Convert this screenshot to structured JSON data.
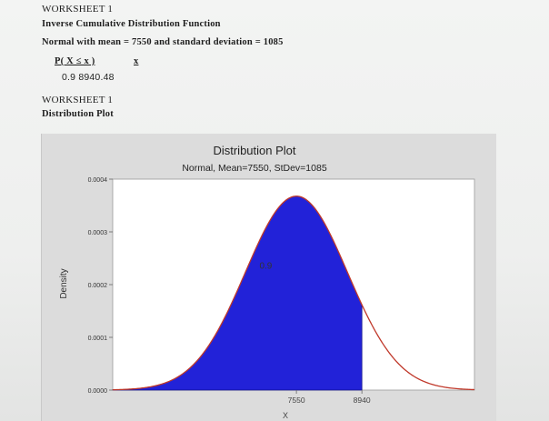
{
  "worksheet1": {
    "title": "WORKSHEET 1",
    "subtitle": "Inverse Cumulative Distribution Function",
    "description": "Normal with mean = 7550 and standard deviation = 1085",
    "columns": [
      "P( X ≤ x )",
      "x"
    ],
    "row": "0.9  8940.48"
  },
  "worksheet2": {
    "title": "WORKSHEET 1",
    "subtitle": "Distribution Plot"
  },
  "colors": {
    "fill": "#2222d8",
    "curve_outline": "#c0392b",
    "plot_bg": "#ffffff"
  },
  "chart_data": {
    "type": "area",
    "title": "Distribution Plot",
    "subtitle": "Normal, Mean=7550, StDev=1085",
    "distribution": {
      "family": "normal",
      "mean": 7550,
      "stdev": 1085
    },
    "xlabel": "X",
    "ylabel": "Density",
    "yticks": [
      "0.0000",
      "0.0001",
      "0.0002",
      "0.0003",
      "0.0004"
    ],
    "ylim": [
      0,
      0.0004
    ],
    "xlim": [
      3650,
      11330
    ],
    "xticks": [
      7550,
      8940
    ],
    "shaded_region": {
      "from": 3650,
      "to": 8940,
      "probability": 0.9,
      "label": "0.9"
    },
    "grid": false
  }
}
